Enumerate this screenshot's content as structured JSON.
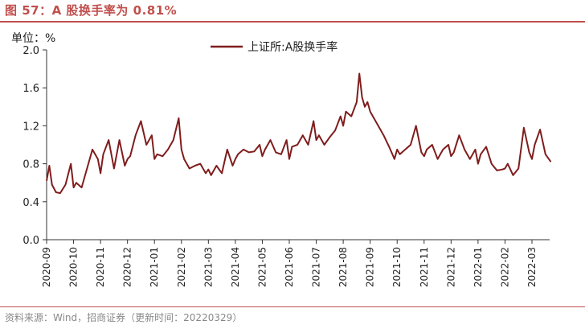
{
  "figure_title": "图 57：A 股换手率为 0.81%",
  "unit_label": "单位：%",
  "source": "资料来源：Wind，招商证券（更新时间：20220329）",
  "chart_data": {
    "type": "line",
    "ylim": [
      0.0,
      2.0
    ],
    "y_ticks": [
      "2.0",
      "1.6",
      "1.2",
      "0.8",
      "0.4",
      "0.0"
    ],
    "y_tick_values": [
      2.0,
      1.6,
      1.2,
      0.8,
      0.4,
      0.0
    ],
    "x_ticks": [
      "2020-09",
      "2020-10",
      "2020-11",
      "2020-12",
      "2021-01",
      "2021-02",
      "2021-03",
      "2021-04",
      "2021-05",
      "2021-06",
      "2021-07",
      "2021-08",
      "2021-09",
      "2021-10",
      "2021-11",
      "2021-12",
      "2022-01",
      "2022-02",
      "2022-03"
    ],
    "legend": "top-center",
    "grid": false,
    "line_color": "#7f1d1d",
    "series": [
      {
        "name": "上证所:A股换手率",
        "x_month_index": [
          0.0,
          0.1,
          0.2,
          0.35,
          0.5,
          0.7,
          0.9,
          1.0,
          1.1,
          1.3,
          1.5,
          1.7,
          1.9,
          2.0,
          2.1,
          2.3,
          2.5,
          2.7,
          2.9,
          3.0,
          3.1,
          3.3,
          3.5,
          3.7,
          3.9,
          4.0,
          4.1,
          4.3,
          4.5,
          4.7,
          4.9,
          5.0,
          5.1,
          5.3,
          5.5,
          5.7,
          5.9,
          6.0,
          6.1,
          6.3,
          6.5,
          6.7,
          6.9,
          7.0,
          7.1,
          7.3,
          7.5,
          7.7,
          7.9,
          8.0,
          8.1,
          8.3,
          8.5,
          8.7,
          8.9,
          9.0,
          9.1,
          9.3,
          9.5,
          9.7,
          9.9,
          10.0,
          10.1,
          10.3,
          10.5,
          10.7,
          10.9,
          11.0,
          11.1,
          11.3,
          11.5,
          11.6,
          11.7,
          11.8,
          11.9,
          12.0,
          12.1,
          12.3,
          12.5,
          12.7,
          12.9,
          13.0,
          13.1,
          13.3,
          13.5,
          13.7,
          13.9,
          14.0,
          14.1,
          14.3,
          14.5,
          14.7,
          14.9,
          15.0,
          15.1,
          15.3,
          15.5,
          15.7,
          15.9,
          16.0,
          16.1,
          16.3,
          16.5,
          16.7,
          16.9,
          17.0,
          17.1,
          17.3,
          17.5,
          17.7,
          17.9,
          18.0,
          18.1,
          18.3,
          18.5,
          18.7
        ],
        "values": [
          0.62,
          0.78,
          0.58,
          0.5,
          0.49,
          0.58,
          0.8,
          0.55,
          0.6,
          0.55,
          0.75,
          0.95,
          0.85,
          0.7,
          0.9,
          1.05,
          0.75,
          1.05,
          0.78,
          0.85,
          0.88,
          1.1,
          1.25,
          1.0,
          1.1,
          0.85,
          0.9,
          0.88,
          0.95,
          1.05,
          1.28,
          0.95,
          0.85,
          0.75,
          0.78,
          0.8,
          0.7,
          0.74,
          0.68,
          0.78,
          0.7,
          0.95,
          0.78,
          0.85,
          0.9,
          0.95,
          0.92,
          0.93,
          1.0,
          0.88,
          0.95,
          1.05,
          0.92,
          0.9,
          1.05,
          0.85,
          0.98,
          1.0,
          1.1,
          1.0,
          1.25,
          1.05,
          1.1,
          1.0,
          1.08,
          1.15,
          1.3,
          1.2,
          1.35,
          1.3,
          1.45,
          1.75,
          1.5,
          1.4,
          1.45,
          1.35,
          1.3,
          1.2,
          1.1,
          0.98,
          0.85,
          0.95,
          0.9,
          0.95,
          1.0,
          1.2,
          0.92,
          0.88,
          0.95,
          1.0,
          0.85,
          0.95,
          1.0,
          0.88,
          0.92,
          1.1,
          0.95,
          0.85,
          0.95,
          0.8,
          0.9,
          0.98,
          0.8,
          0.73,
          0.74,
          0.75,
          0.8,
          0.68,
          0.75,
          1.18,
          0.92,
          0.85,
          1.0,
          1.16,
          0.9,
          0.82
        ]
      }
    ]
  }
}
